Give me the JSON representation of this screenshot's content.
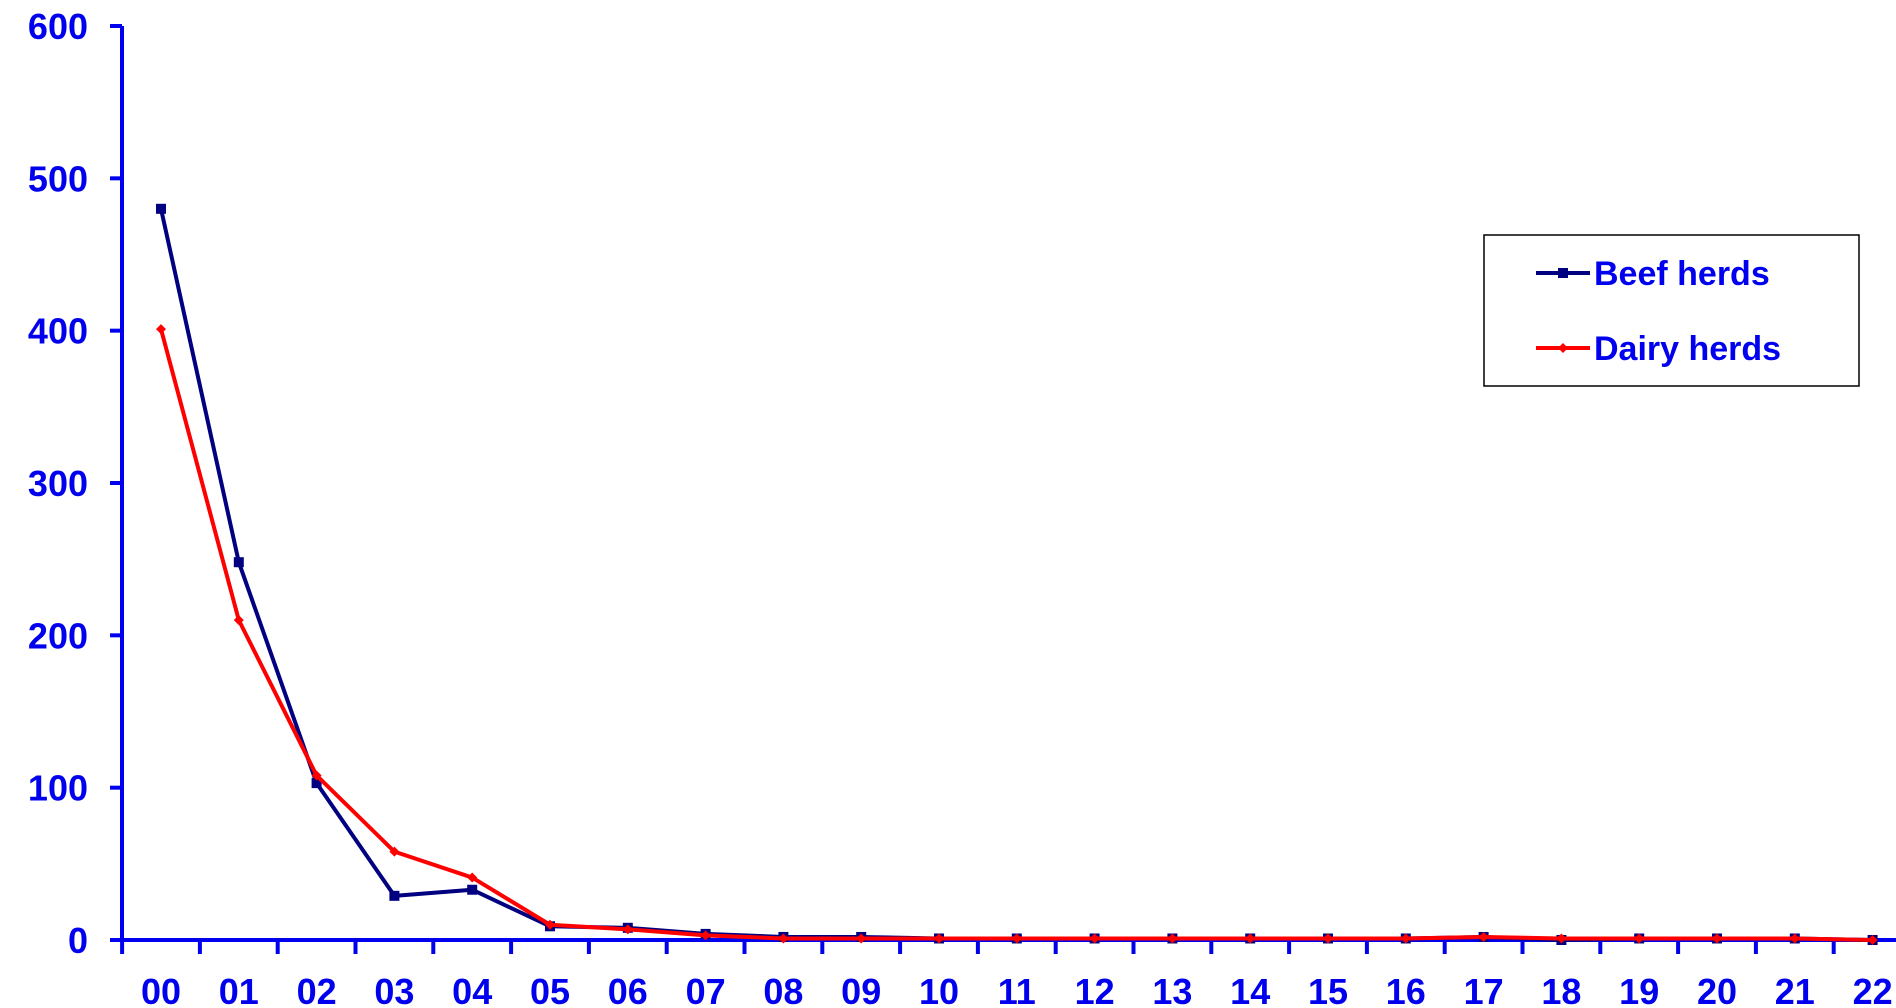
{
  "chart_data": {
    "type": "line",
    "title": "",
    "xlabel": "",
    "ylabel": "",
    "x": [
      "00",
      "01",
      "02",
      "03",
      "04",
      "05",
      "06",
      "07",
      "08",
      "09",
      "10",
      "11",
      "12",
      "13",
      "14",
      "15",
      "16",
      "17",
      "18",
      "19",
      "20",
      "21",
      "22"
    ],
    "yticks": [
      "0",
      "100",
      "200",
      "300",
      "400",
      "500",
      "600"
    ],
    "ylim": [
      0,
      600
    ],
    "grid": false,
    "legend_position": "top-right",
    "series": [
      {
        "name": "Beef herds",
        "color": "#000080",
        "marker": "square",
        "values": [
          480,
          248,
          103,
          29,
          33,
          9,
          8,
          4,
          2,
          2,
          1,
          1,
          1,
          1,
          1,
          1,
          1,
          2,
          0,
          1,
          1,
          1,
          0
        ]
      },
      {
        "name": "Dairy herds",
        "color": "#FF0000",
        "marker": "diamond",
        "values": [
          401,
          210,
          108,
          58,
          41,
          10,
          7,
          3,
          1,
          1,
          1,
          1,
          1,
          1,
          1,
          1,
          1,
          2,
          1,
          1,
          1,
          1,
          0
        ]
      }
    ],
    "axis_color": "#0000EE"
  }
}
